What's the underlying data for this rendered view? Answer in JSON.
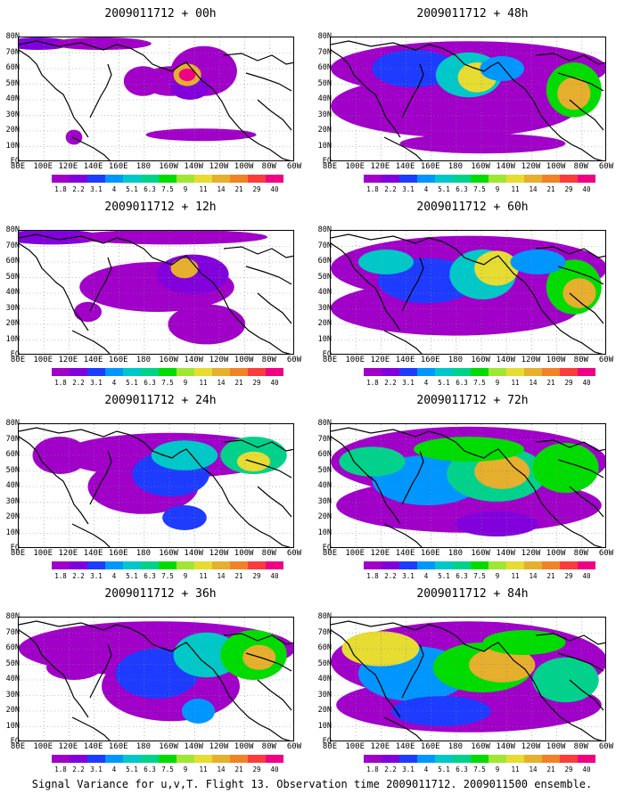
{
  "chart_data": {
    "type": "heatmap",
    "panels": [
      {
        "title": "2009011712 + 00h",
        "lead_hours": 0
      },
      {
        "title": "2009011712 + 48h",
        "lead_hours": 48
      },
      {
        "title": "2009011712 + 12h",
        "lead_hours": 12
      },
      {
        "title": "2009011712 + 60h",
        "lead_hours": 60
      },
      {
        "title": "2009011712 + 24h",
        "lead_hours": 24
      },
      {
        "title": "2009011712 + 72h",
        "lead_hours": 72
      },
      {
        "title": "2009011712 + 36h",
        "lead_hours": 36
      },
      {
        "title": "2009011712 + 84h",
        "lead_hours": 84
      }
    ],
    "lat_ticks": [
      "80N",
      "70N",
      "60N",
      "50N",
      "40N",
      "30N",
      "20N",
      "10N",
      "EQ"
    ],
    "lon_ticks": [
      "80E",
      "100E",
      "120E",
      "140E",
      "160E",
      "180",
      "160W",
      "140W",
      "120W",
      "100W",
      "80W",
      "60W"
    ],
    "colorbar": {
      "levels": [
        "1.8",
        "2.2",
        "3.1",
        "4",
        "5.1",
        "6.3",
        "7.5",
        "9",
        "11",
        "14",
        "21",
        "29",
        "40"
      ],
      "colors": [
        "#a000c8",
        "#8200dc",
        "#1e3cff",
        "#0096ff",
        "#00c8c8",
        "#00d28c",
        "#00dc00",
        "#a0e632",
        "#e6dc32",
        "#e6af2d",
        "#f08228",
        "#fa3c3c",
        "#f00082"
      ]
    },
    "footer": "Signal Variance for u,v,T. Flight 13. Observation time 2009011712. 2009011500 ensemble."
  }
}
